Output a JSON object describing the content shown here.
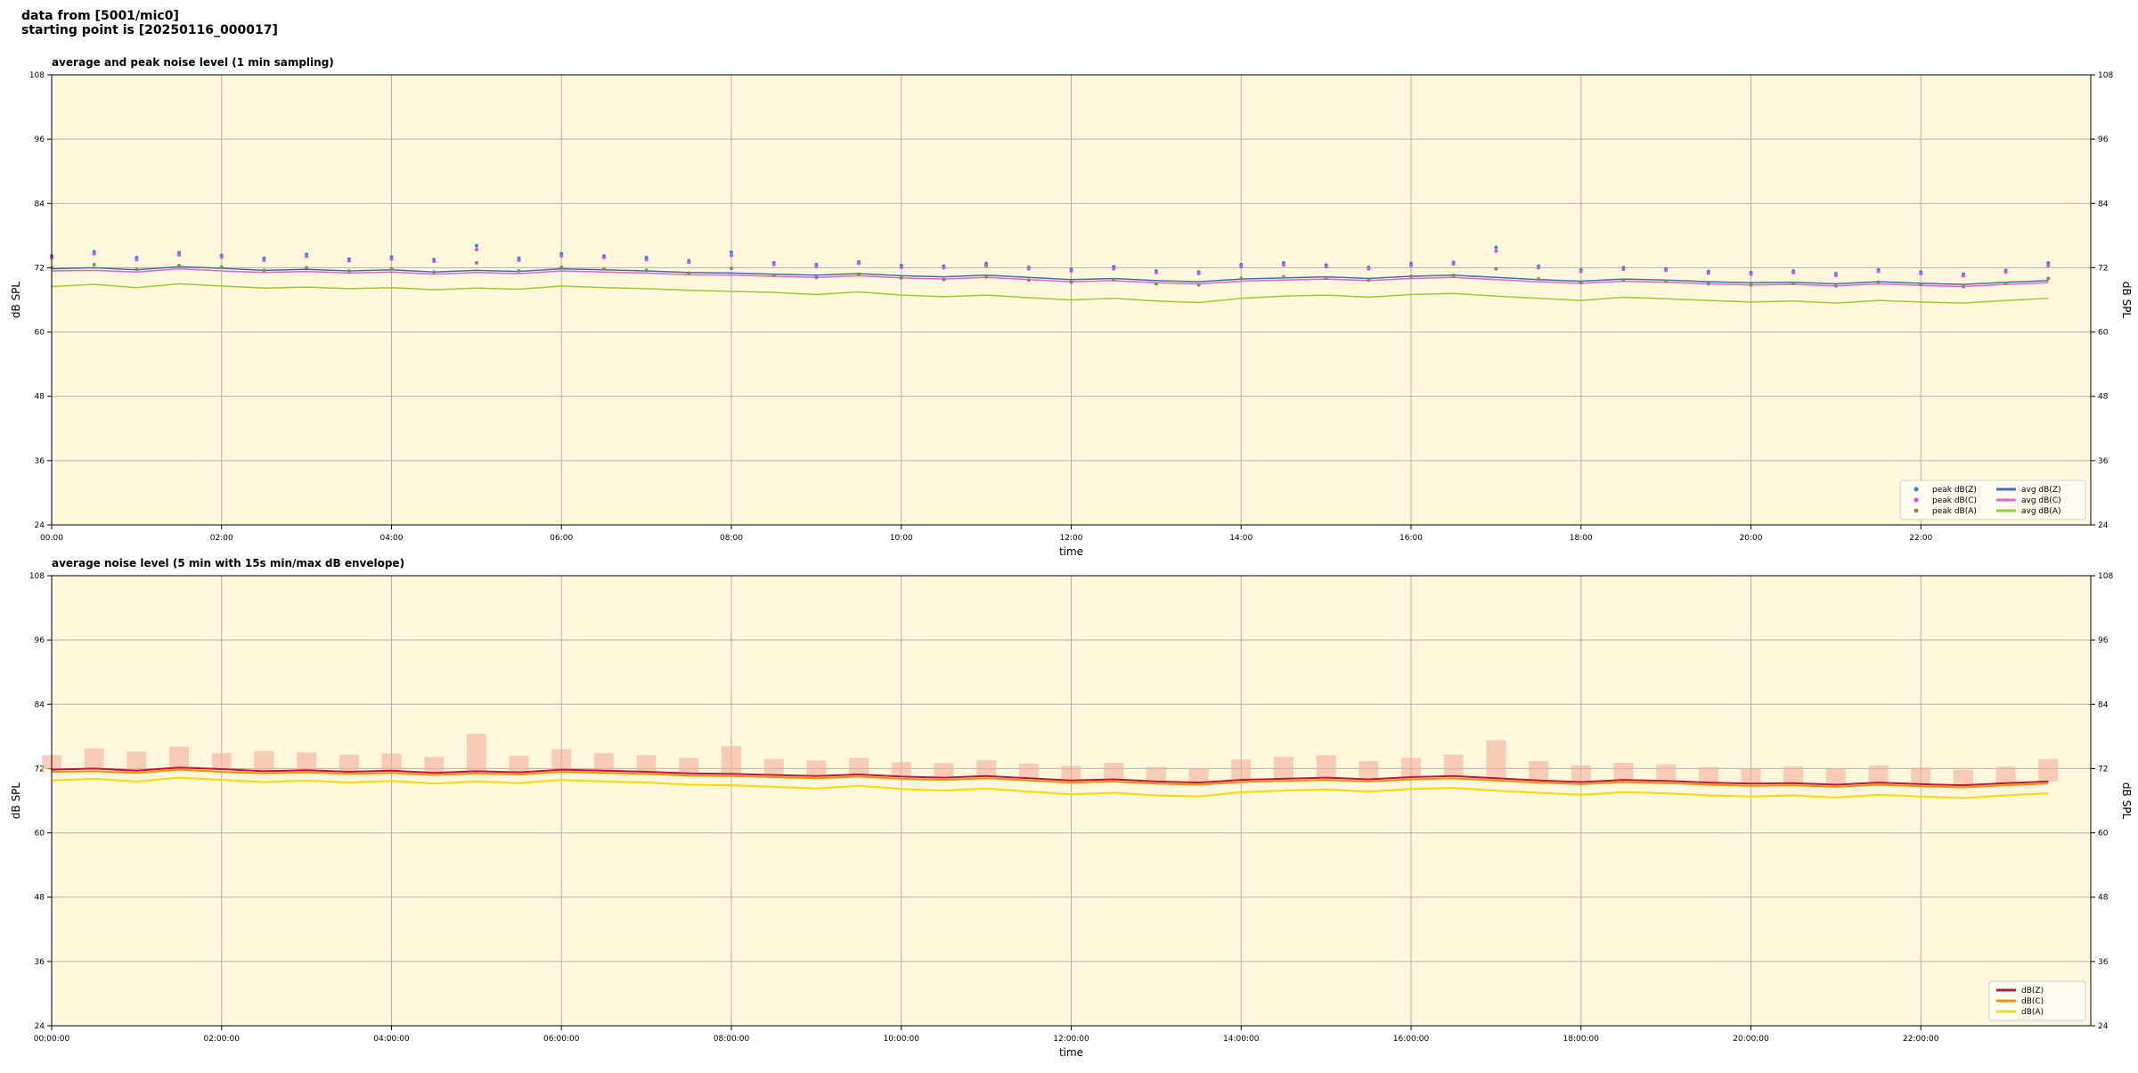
{
  "header": {
    "lines": [
      "data from [5001/mic0]",
      "starting point is [20250116_000017]"
    ]
  },
  "chart_data": [
    {
      "type": "line",
      "title": "average and peak noise level (1 min sampling)",
      "xlabel": "time",
      "ylabel": "dB SPL",
      "background": "#fff8dc",
      "grid": true,
      "legend": "lower right",
      "legend_columns": 2,
      "xlim": [
        0,
        24
      ],
      "ylim": [
        24,
        108
      ],
      "yticks": [
        24,
        36,
        48,
        60,
        72,
        84,
        96,
        108
      ],
      "xticks": [
        {
          "value": 0,
          "label": "00:00"
        },
        {
          "value": 2,
          "label": "02:00"
        },
        {
          "value": 4,
          "label": "04:00"
        },
        {
          "value": 6,
          "label": "06:00"
        },
        {
          "value": 8,
          "label": "08:00"
        },
        {
          "value": 10,
          "label": "10:00"
        },
        {
          "value": 12,
          "label": "12:00"
        },
        {
          "value": 14,
          "label": "14:00"
        },
        {
          "value": 16,
          "label": "16:00"
        },
        {
          "value": 18,
          "label": "18:00"
        },
        {
          "value": 20,
          "label": "20:00"
        },
        {
          "value": 22,
          "label": "22:00"
        }
      ],
      "x": [
        0,
        0.5,
        1,
        1.5,
        2,
        2.5,
        3,
        3.5,
        4,
        4.5,
        5,
        5.5,
        6,
        6.5,
        7,
        7.5,
        8,
        8.5,
        9,
        9.5,
        10,
        10.5,
        11,
        11.5,
        12,
        12.5,
        13,
        13.5,
        14,
        14.5,
        15,
        15.5,
        16,
        16.5,
        17,
        17.5,
        18,
        18.5,
        19,
        19.5,
        20,
        20.5,
        21,
        21.5,
        22,
        22.5,
        23,
        23.5
      ],
      "series": [
        {
          "name": "peak dB(Z)",
          "color": "#2b8cd6",
          "marker": true,
          "values": [
            74.2,
            75.0,
            73.9,
            74.8,
            74.3,
            73.8,
            74.5,
            73.6,
            74.0,
            73.5,
            76.1,
            73.8,
            74.6,
            74.2,
            73.9,
            73.3,
            74.9,
            72.9,
            72.6,
            73.1,
            72.4,
            72.3,
            72.8,
            72.1,
            71.7,
            72.2,
            71.4,
            71.2,
            72.6,
            72.9,
            72.5,
            72.1,
            72.8,
            73.0,
            75.8,
            72.3,
            71.6,
            72.0,
            71.8,
            71.3,
            71.1,
            71.4,
            70.9,
            71.6,
            71.2,
            70.8,
            71.5,
            72.9
          ]
        },
        {
          "name": "peak dB(C)",
          "color": "#d94fe0",
          "marker": true,
          "values": [
            73.9,
            74.6,
            73.5,
            74.4,
            74.0,
            73.4,
            74.1,
            73.3,
            73.6,
            73.2,
            75.4,
            73.4,
            74.2,
            73.9,
            73.5,
            73.0,
            74.3,
            72.6,
            72.3,
            72.8,
            72.1,
            72.0,
            72.4,
            71.8,
            71.4,
            71.8,
            71.1,
            70.9,
            72.2,
            72.5,
            72.2,
            71.8,
            72.4,
            72.7,
            75.1,
            72.0,
            71.3,
            71.7,
            71.5,
            71.0,
            70.8,
            71.1,
            70.6,
            71.3,
            70.9,
            70.5,
            71.2,
            72.4
          ]
        },
        {
          "name": "peak dB(A)",
          "color": "#7a8f5a",
          "marker": true,
          "values": [
            72.0,
            72.6,
            71.7,
            72.4,
            72.1,
            71.5,
            72.0,
            71.4,
            71.8,
            71.2,
            72.9,
            71.4,
            72.1,
            71.8,
            71.5,
            71.0,
            71.9,
            70.6,
            70.2,
            70.8,
            70.1,
            69.8,
            70.3,
            69.7,
            69.3,
            69.8,
            69.0,
            68.8,
            70.0,
            70.3,
            70.1,
            69.7,
            70.4,
            70.6,
            71.8,
            69.9,
            69.2,
            69.7,
            69.5,
            69.0,
            68.8,
            69.1,
            68.6,
            69.3,
            68.9,
            68.5,
            69.1,
            70.0
          ]
        },
        {
          "name": "avg dB(Z)",
          "color": "#3f6fa8",
          "marker": false,
          "values": [
            71.8,
            72.0,
            71.6,
            72.2,
            71.9,
            71.5,
            71.7,
            71.4,
            71.6,
            71.2,
            71.5,
            71.3,
            71.8,
            71.6,
            71.4,
            71.1,
            71.0,
            70.8,
            70.6,
            70.9,
            70.5,
            70.3,
            70.6,
            70.2,
            69.8,
            70.0,
            69.6,
            69.4,
            69.9,
            70.1,
            70.3,
            70.0,
            70.4,
            70.6,
            70.2,
            69.8,
            69.5,
            69.9,
            69.7,
            69.4,
            69.2,
            69.3,
            69.0,
            69.4,
            69.1,
            68.9,
            69.3,
            69.6
          ]
        },
        {
          "name": "avg dB(C)",
          "color": "#e066c8",
          "marker": false,
          "values": [
            71.4,
            71.5,
            71.2,
            71.8,
            71.4,
            71.1,
            71.3,
            71.0,
            71.2,
            70.8,
            71.1,
            70.9,
            71.4,
            71.2,
            71.0,
            70.7,
            70.6,
            70.4,
            70.2,
            70.5,
            70.1,
            69.9,
            70.2,
            69.8,
            69.4,
            69.6,
            69.2,
            69.0,
            69.5,
            69.7,
            69.9,
            69.6,
            70.0,
            70.2,
            69.8,
            69.4,
            69.1,
            69.5,
            69.3,
            69.0,
            68.8,
            68.9,
            68.6,
            69.0,
            68.7,
            68.5,
            68.9,
            69.2
          ]
        },
        {
          "name": "avg dB(A)",
          "color": "#9acd32",
          "marker": false,
          "values": [
            68.5,
            68.9,
            68.3,
            69.0,
            68.6,
            68.2,
            68.4,
            68.1,
            68.3,
            67.9,
            68.2,
            68.0,
            68.6,
            68.3,
            68.1,
            67.8,
            67.6,
            67.4,
            67.0,
            67.5,
            66.9,
            66.6,
            66.9,
            66.4,
            66.0,
            66.3,
            65.8,
            65.5,
            66.3,
            66.7,
            66.9,
            66.5,
            67.0,
            67.2,
            66.7,
            66.3,
            65.9,
            66.5,
            66.2,
            65.9,
            65.6,
            65.8,
            65.4,
            65.9,
            65.6,
            65.4,
            65.9,
            66.3
          ]
        }
      ]
    },
    {
      "type": "line",
      "title": "average noise level (5 min with 15s min/max dB envelope)",
      "xlabel": "time",
      "ylabel": "dB SPL",
      "background": "#fff8dc",
      "grid": true,
      "legend": "lower right",
      "legend_columns": 1,
      "envelope_color": "#f4b09a",
      "xlim": [
        0,
        24
      ],
      "ylim": [
        24,
        108
      ],
      "yticks": [
        24,
        36,
        48,
        60,
        72,
        84,
        96,
        108
      ],
      "xticks": [
        {
          "value": 0,
          "label": "00:00:00"
        },
        {
          "value": 2,
          "label": "02:00:00"
        },
        {
          "value": 4,
          "label": "04:00:00"
        },
        {
          "value": 6,
          "label": "06:00:00"
        },
        {
          "value": 8,
          "label": "08:00:00"
        },
        {
          "value": 10,
          "label": "10:00:00"
        },
        {
          "value": 12,
          "label": "12:00:00"
        },
        {
          "value": 14,
          "label": "14:00:00"
        },
        {
          "value": 16,
          "label": "16:00:00"
        },
        {
          "value": 18,
          "label": "18:00:00"
        },
        {
          "value": 20,
          "label": "20:00:00"
        },
        {
          "value": 22,
          "label": "22:00:00"
        }
      ],
      "x": [
        0,
        0.5,
        1,
        1.5,
        2,
        2.5,
        3,
        3.5,
        4,
        4.5,
        5,
        5.5,
        6,
        6.5,
        7,
        7.5,
        8,
        8.5,
        9,
        9.5,
        10,
        10.5,
        11,
        11.5,
        12,
        12.5,
        13,
        13.5,
        14,
        14.5,
        15,
        15.5,
        16,
        16.5,
        17,
        17.5,
        18,
        18.5,
        19,
        19.5,
        20,
        20.5,
        21,
        21.5,
        22,
        22.5,
        23,
        23.5
      ],
      "envelope_max": [
        74.5,
        75.8,
        75.2,
        76.1,
        74.9,
        75.3,
        75.0,
        74.6,
        74.8,
        74.2,
        78.5,
        74.4,
        75.6,
        74.9,
        74.5,
        74.0,
        76.2,
        73.8,
        73.5,
        74.0,
        73.2,
        73.0,
        73.6,
        72.9,
        72.5,
        73.1,
        72.3,
        72.0,
        73.7,
        74.2,
        74.5,
        73.4,
        74.0,
        74.6,
        77.3,
        73.4,
        72.6,
        73.1,
        72.8,
        72.3,
        72.0,
        72.4,
        71.9,
        72.6,
        72.2,
        71.8,
        72.4,
        73.8
      ],
      "series": [
        {
          "name": "dB(Z)",
          "color": "#c0143c",
          "marker": false,
          "values": [
            71.8,
            72.0,
            71.6,
            72.2,
            71.9,
            71.5,
            71.7,
            71.4,
            71.6,
            71.2,
            71.5,
            71.3,
            71.8,
            71.6,
            71.4,
            71.1,
            71.0,
            70.8,
            70.6,
            70.9,
            70.5,
            70.3,
            70.6,
            70.2,
            69.8,
            70.0,
            69.6,
            69.4,
            69.9,
            70.1,
            70.3,
            70.0,
            70.4,
            70.6,
            70.2,
            69.8,
            69.5,
            69.9,
            69.7,
            69.4,
            69.2,
            69.3,
            69.0,
            69.4,
            69.1,
            68.9,
            69.3,
            69.6
          ]
        },
        {
          "name": "dB(C)",
          "color": "#ff8c00",
          "marker": false,
          "values": [
            71.4,
            71.5,
            71.2,
            71.8,
            71.4,
            71.1,
            71.3,
            71.0,
            71.2,
            70.8,
            71.1,
            70.9,
            71.4,
            71.2,
            71.0,
            70.7,
            70.6,
            70.4,
            70.2,
            70.5,
            70.1,
            69.9,
            70.2,
            69.8,
            69.4,
            69.6,
            69.2,
            69.0,
            69.5,
            69.7,
            69.9,
            69.6,
            70.0,
            70.2,
            69.8,
            69.4,
            69.1,
            69.5,
            69.3,
            69.0,
            68.8,
            68.9,
            68.6,
            69.0,
            68.7,
            68.5,
            68.9,
            69.2
          ]
        },
        {
          "name": "dB(A)",
          "color": "#ffd700",
          "marker": false,
          "values": [
            69.8,
            70.1,
            69.6,
            70.3,
            69.9,
            69.5,
            69.8,
            69.4,
            69.7,
            69.2,
            69.6,
            69.3,
            69.9,
            69.6,
            69.4,
            69.0,
            68.9,
            68.6,
            68.3,
            68.8,
            68.2,
            67.9,
            68.3,
            67.7,
            67.2,
            67.5,
            67.0,
            66.8,
            67.6,
            67.9,
            68.1,
            67.7,
            68.2,
            68.4,
            67.9,
            67.5,
            67.1,
            67.6,
            67.4,
            67.0,
            66.8,
            67.0,
            66.6,
            67.1,
            66.8,
            66.5,
            67.0,
            67.4
          ]
        }
      ]
    }
  ]
}
